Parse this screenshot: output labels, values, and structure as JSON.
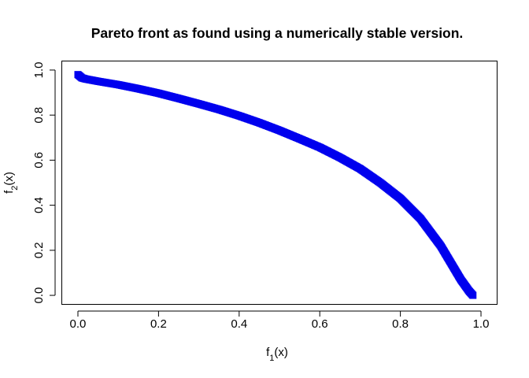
{
  "chart_data": {
    "type": "scatter",
    "title": "Pareto front as found using a numerically stable version.",
    "xlabel": {
      "base": "f",
      "sub": "1",
      "rest": "(x)"
    },
    "ylabel": {
      "base": "f",
      "sub": "2",
      "rest": "(x)"
    },
    "xlim": [
      -0.04,
      1.04
    ],
    "ylim": [
      -0.04,
      1.04
    ],
    "xticks": [
      0.0,
      0.2,
      0.4,
      0.6,
      0.8,
      1.0
    ],
    "xtick_labels": [
      "0.0",
      "0.2",
      "0.4",
      "0.6",
      "0.8",
      "1.0"
    ],
    "yticks": [
      0.0,
      0.2,
      0.4,
      0.6,
      0.8,
      1.0
    ],
    "ytick_labels": [
      "0.0",
      "0.2",
      "0.4",
      "0.6",
      "0.8",
      "1.0"
    ],
    "marker": "filled-square",
    "series_color": "#0000ee",
    "grid": false,
    "series": [
      {
        "x": [
          0.0,
          0.01,
          0.02,
          0.05,
          0.1,
          0.15,
          0.2,
          0.25,
          0.3,
          0.35,
          0.4,
          0.45,
          0.5,
          0.55,
          0.6,
          0.65,
          0.7,
          0.75,
          0.8,
          0.85,
          0.9,
          0.93,
          0.95,
          0.97,
          0.98
        ],
        "y": [
          0.98,
          0.965,
          0.96,
          0.95,
          0.935,
          0.917,
          0.897,
          0.874,
          0.85,
          0.825,
          0.797,
          0.766,
          0.732,
          0.695,
          0.657,
          0.612,
          0.562,
          0.5,
          0.43,
          0.34,
          0.22,
          0.13,
          0.07,
          0.02,
          0.0
        ]
      }
    ]
  }
}
